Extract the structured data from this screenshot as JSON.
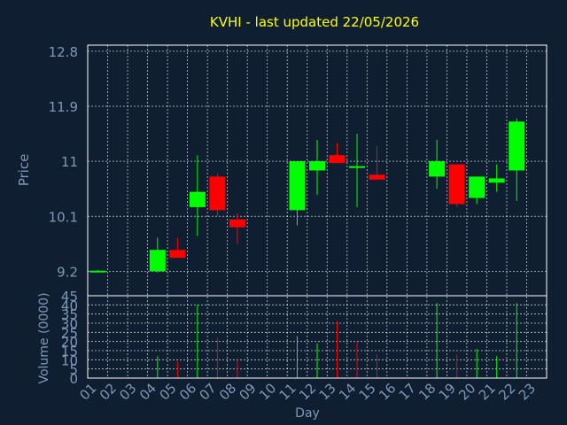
{
  "chart_data": [
    {
      "type": "candlestick",
      "title": "KVHI - last updated 22/05/2026",
      "ylabel": "Price",
      "xlabel": "Day",
      "ylim": [
        8.8,
        12.9
      ],
      "yticks": [
        9.2,
        10.1,
        11,
        11.9,
        12.8
      ],
      "yticklabels": [
        "9.2",
        "10.1",
        "11",
        "11.9",
        "12.8"
      ],
      "xticklabels": [
        "01",
        "02",
        "03",
        "04",
        "05",
        "06",
        "07",
        "08",
        "09",
        "10",
        "11",
        "12",
        "13",
        "14",
        "15",
        "16",
        "17",
        "18",
        "19",
        "20",
        "21",
        "22",
        "23"
      ],
      "colors": {
        "up": "#00ff00",
        "down": "#ff0000"
      },
      "candles": [
        {
          "x": 0,
          "open": 9.21,
          "close": 9.21,
          "high": 9.22,
          "low": 9.2
        },
        {
          "x": 3,
          "open": 9.2,
          "close": 9.55,
          "high": 9.75,
          "low": 9.18
        },
        {
          "x": 4,
          "open": 9.55,
          "close": 9.42,
          "high": 9.75,
          "low": 9.42
        },
        {
          "x": 5,
          "open": 10.25,
          "close": 10.5,
          "high": 11.1,
          "low": 9.78
        },
        {
          "x": 6,
          "open": 10.75,
          "close": 10.2,
          "high": 10.8,
          "low": 10.1
        },
        {
          "x": 7,
          "open": 10.05,
          "close": 9.92,
          "high": 10.15,
          "low": 9.65
        },
        {
          "x": 10,
          "open": 10.2,
          "close": 11.0,
          "high": 11.0,
          "low": 9.95
        },
        {
          "x": 11,
          "open": 10.85,
          "close": 11.0,
          "high": 11.35,
          "low": 10.45
        },
        {
          "x": 12,
          "open": 11.1,
          "close": 10.97,
          "high": 11.3,
          "low": 10.97
        },
        {
          "x": 13,
          "open": 10.92,
          "close": 10.92,
          "high": 11.45,
          "low": 10.25
        },
        {
          "x": 14,
          "open": 10.78,
          "close": 10.7,
          "high": 11.25,
          "low": 10.7
        },
        {
          "x": 17,
          "open": 10.75,
          "close": 11.0,
          "high": 11.35,
          "low": 10.55
        },
        {
          "x": 18,
          "open": 10.95,
          "close": 10.3,
          "high": 10.95,
          "low": 10.25
        },
        {
          "x": 19,
          "open": 10.4,
          "close": 10.75,
          "high": 10.75,
          "low": 10.3
        },
        {
          "x": 20,
          "open": 10.65,
          "close": 10.72,
          "high": 10.95,
          "low": 10.5
        },
        {
          "x": 21,
          "open": 10.85,
          "close": 11.65,
          "high": 11.7,
          "low": 10.35
        }
      ]
    },
    {
      "type": "bar",
      "ylabel": "Volume (0000)",
      "ylim": [
        0,
        45
      ],
      "yticks": [
        0,
        5,
        10,
        15,
        20,
        25,
        30,
        35,
        40,
        45
      ],
      "yticklabels": [
        "0",
        "5",
        "10",
        "15",
        "20",
        "25",
        "30",
        "35",
        "40",
        "45"
      ],
      "bars": [
        {
          "x": 3,
          "value": 12,
          "dir": "up"
        },
        {
          "x": 4,
          "value": 9,
          "dir": "down"
        },
        {
          "x": 5,
          "value": 40,
          "dir": "up"
        },
        {
          "x": 6,
          "value": 22,
          "dir": "down"
        },
        {
          "x": 7,
          "value": 10,
          "dir": "down"
        },
        {
          "x": 10,
          "value": 23,
          "dir": "up"
        },
        {
          "x": 11,
          "value": 19,
          "dir": "up"
        },
        {
          "x": 12,
          "value": 31,
          "dir": "down"
        },
        {
          "x": 13,
          "value": 20,
          "dir": "down"
        },
        {
          "x": 14,
          "value": 13,
          "dir": "down"
        },
        {
          "x": 17,
          "value": 41,
          "dir": "up"
        },
        {
          "x": 18,
          "value": 13,
          "dir": "down"
        },
        {
          "x": 19,
          "value": 16,
          "dir": "up"
        },
        {
          "x": 20,
          "value": 12,
          "dir": "up"
        },
        {
          "x": 21,
          "value": 41,
          "dir": "up"
        }
      ]
    }
  ]
}
